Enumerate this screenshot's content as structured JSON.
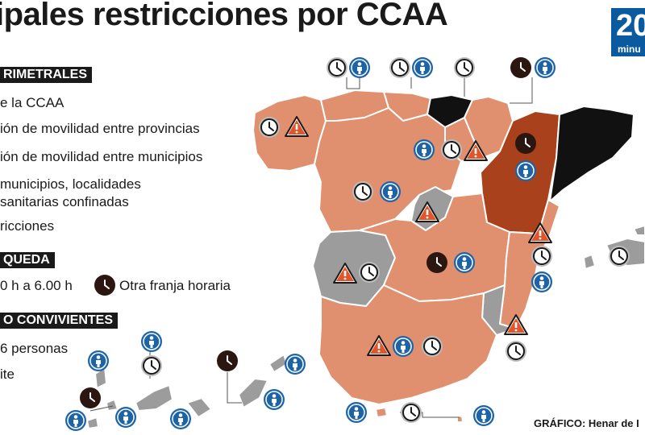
{
  "title": "ipales restricciones por CCAA",
  "logo": {
    "text_big": "20",
    "text_small": "minu"
  },
  "legend": {
    "perimetral": {
      "header": "RIMETRALES",
      "items": [
        "e la CCAA",
        "ión de movilidad entre provincias",
        "ión de movilidad entre municipios",
        "municipios, localidades",
        "sanitarias confinadas",
        "ricciones"
      ]
    },
    "toque": {
      "header": "QUEDA",
      "items": [
        "0 h a 6.00 h",
        "Otra franja horaria"
      ]
    },
    "convivientes": {
      "header": "O CONVIVIENTES",
      "items": [
        "6 personas",
        "ite"
      ]
    }
  },
  "credit": "GRÁFICO: Henar de I",
  "colors": {
    "salmon": "#e0906e",
    "dark_orange": "#a9411c",
    "gray": "#9c9c9c",
    "black": "#111111",
    "blue_icon": "#1c63a8",
    "stroke": "#ffffff"
  },
  "icons": {
    "clock_white": "clock-icon",
    "clock_black": "clock-icon-filled",
    "person": "person-icon",
    "warning": "warning-icon"
  }
}
